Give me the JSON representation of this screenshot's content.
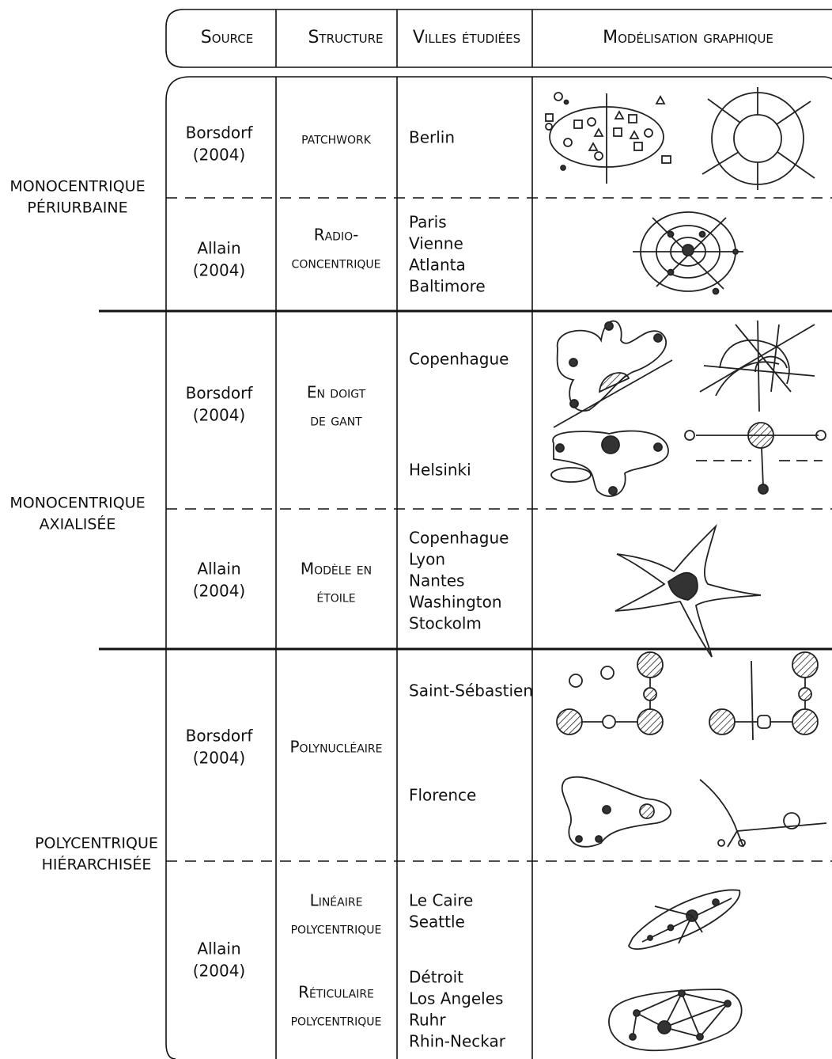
{
  "header": [
    "Source",
    "Structure",
    "Villes étudiées",
    "Modélisation graphique"
  ],
  "groups": [
    [
      "MONOCENTRIQUE",
      "PÉRIURBAINE"
    ],
    [
      "MONOCENTRIQUE",
      "AXIALISÉE"
    ],
    [
      "POLYCENTRIQUE",
      "HIÉRARCHISÉE"
    ]
  ],
  "rows": [
    {
      "source": [
        "Borsdorf",
        "(2004)"
      ],
      "structure": [
        [
          "patchwork"
        ]
      ],
      "cities": [
        [
          "Berlin"
        ]
      ]
    },
    {
      "source": [
        "Allain",
        "(2004)"
      ],
      "structure": [
        [
          "Radio-",
          "concentrique"
        ]
      ],
      "cities": [
        [
          "Paris",
          "Vienne",
          "Atlanta",
          "Baltimore"
        ]
      ]
    },
    {
      "source": [
        "Borsdorf",
        "(2004)"
      ],
      "structure": [
        [
          "En doigt",
          "de gant"
        ]
      ],
      "cities": [
        [
          "Copenhague"
        ],
        [
          "Helsinki"
        ]
      ]
    },
    {
      "source": [
        "Allain",
        "(2004)"
      ],
      "structure": [
        [
          "Modèle en",
          "étoile"
        ]
      ],
      "cities": [
        [
          "Copenhague",
          "Lyon",
          "Nantes",
          "Washington",
          "Stockolm"
        ]
      ]
    },
    {
      "source": [
        "Borsdorf",
        "(2004)"
      ],
      "structure": [
        [
          "Polynucléaire"
        ]
      ],
      "cities": [
        [
          "Saint-Sébastien"
        ],
        [
          "Florence"
        ]
      ]
    },
    {
      "source": [
        "Allain",
        "(2004)"
      ],
      "structure": [
        [
          "Linéaire",
          "polycentrique"
        ],
        [
          "Réticulaire",
          "polycentrique"
        ]
      ],
      "cities": [
        [
          "Le Caire",
          "Seattle"
        ],
        [
          "Détroit",
          "Los Angeles",
          "Ruhr",
          "Rhin-Neckar"
        ]
      ]
    }
  ]
}
